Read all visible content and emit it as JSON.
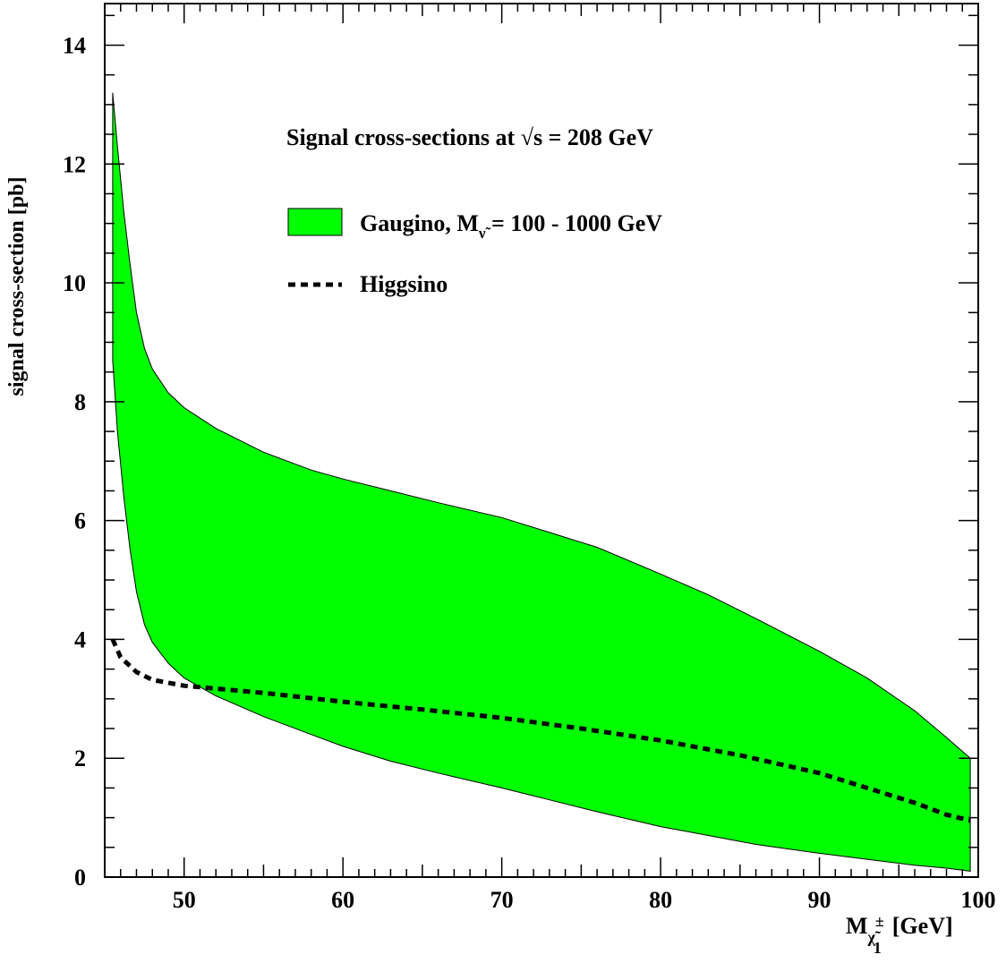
{
  "chart_data": {
    "type": "area",
    "title": "Signal cross-sections at √s = 208 GeV",
    "xlabel": "M",
    "xlabel_sub": "χ̃",
    "xlabel_sup": "±",
    "xlabel_subsub": "1",
    "xlabel_unit": "[GeV]",
    "ylabel": "signal cross-section [pb]",
    "xlim": [
      45,
      100
    ],
    "ylim": [
      0,
      14.7
    ],
    "x_ticks": [
      50,
      60,
      70,
      80,
      90,
      100
    ],
    "x_tick_labels": [
      "50",
      "60",
      "70",
      "80",
      "90",
      "100"
    ],
    "y_ticks": [
      0,
      2,
      4,
      6,
      8,
      10,
      12,
      14
    ],
    "y_tick_labels": [
      "0",
      "2",
      "4",
      "6",
      "8",
      "10",
      "12",
      "14"
    ],
    "legend": {
      "band_prefix": "Gaugino, M",
      "band_sub": "ν̃",
      "band_suffix": " = 100 - 1000 GeV",
      "line_label": "Higgsino",
      "position": "top-center"
    },
    "band_color": "#00ff00",
    "series": [
      {
        "name": "Gaugino",
        "kind": "band",
        "x": [
          45.5,
          45.8,
          46.2,
          46.6,
          47.0,
          47.5,
          48,
          49,
          50,
          52,
          55,
          58,
          60,
          63,
          66,
          70,
          73,
          76,
          80,
          83,
          86,
          90,
          93,
          96,
          98,
          99.5
        ],
        "upper": [
          13.2,
          12.3,
          11.2,
          10.3,
          9.5,
          8.9,
          8.55,
          8.15,
          7.9,
          7.55,
          7.15,
          6.85,
          6.7,
          6.5,
          6.3,
          6.05,
          5.8,
          5.55,
          5.1,
          4.75,
          4.35,
          3.8,
          3.35,
          2.8,
          2.35,
          2.0
        ],
        "lower": [
          8.7,
          7.5,
          6.4,
          5.5,
          4.8,
          4.25,
          3.95,
          3.6,
          3.35,
          3.05,
          2.7,
          2.4,
          2.2,
          1.95,
          1.75,
          1.5,
          1.3,
          1.1,
          0.85,
          0.7,
          0.55,
          0.4,
          0.3,
          0.2,
          0.15,
          0.1
        ]
      },
      {
        "name": "Higgsino",
        "kind": "dashed-line",
        "x": [
          45.5,
          46.0,
          47.0,
          48,
          50,
          55,
          60,
          65,
          70,
          75,
          80,
          85,
          90,
          93,
          96,
          98,
          99.5
        ],
        "y": [
          4.0,
          3.7,
          3.45,
          3.32,
          3.22,
          3.1,
          2.95,
          2.82,
          2.68,
          2.5,
          2.3,
          2.05,
          1.75,
          1.5,
          1.25,
          1.05,
          0.95
        ]
      }
    ]
  }
}
